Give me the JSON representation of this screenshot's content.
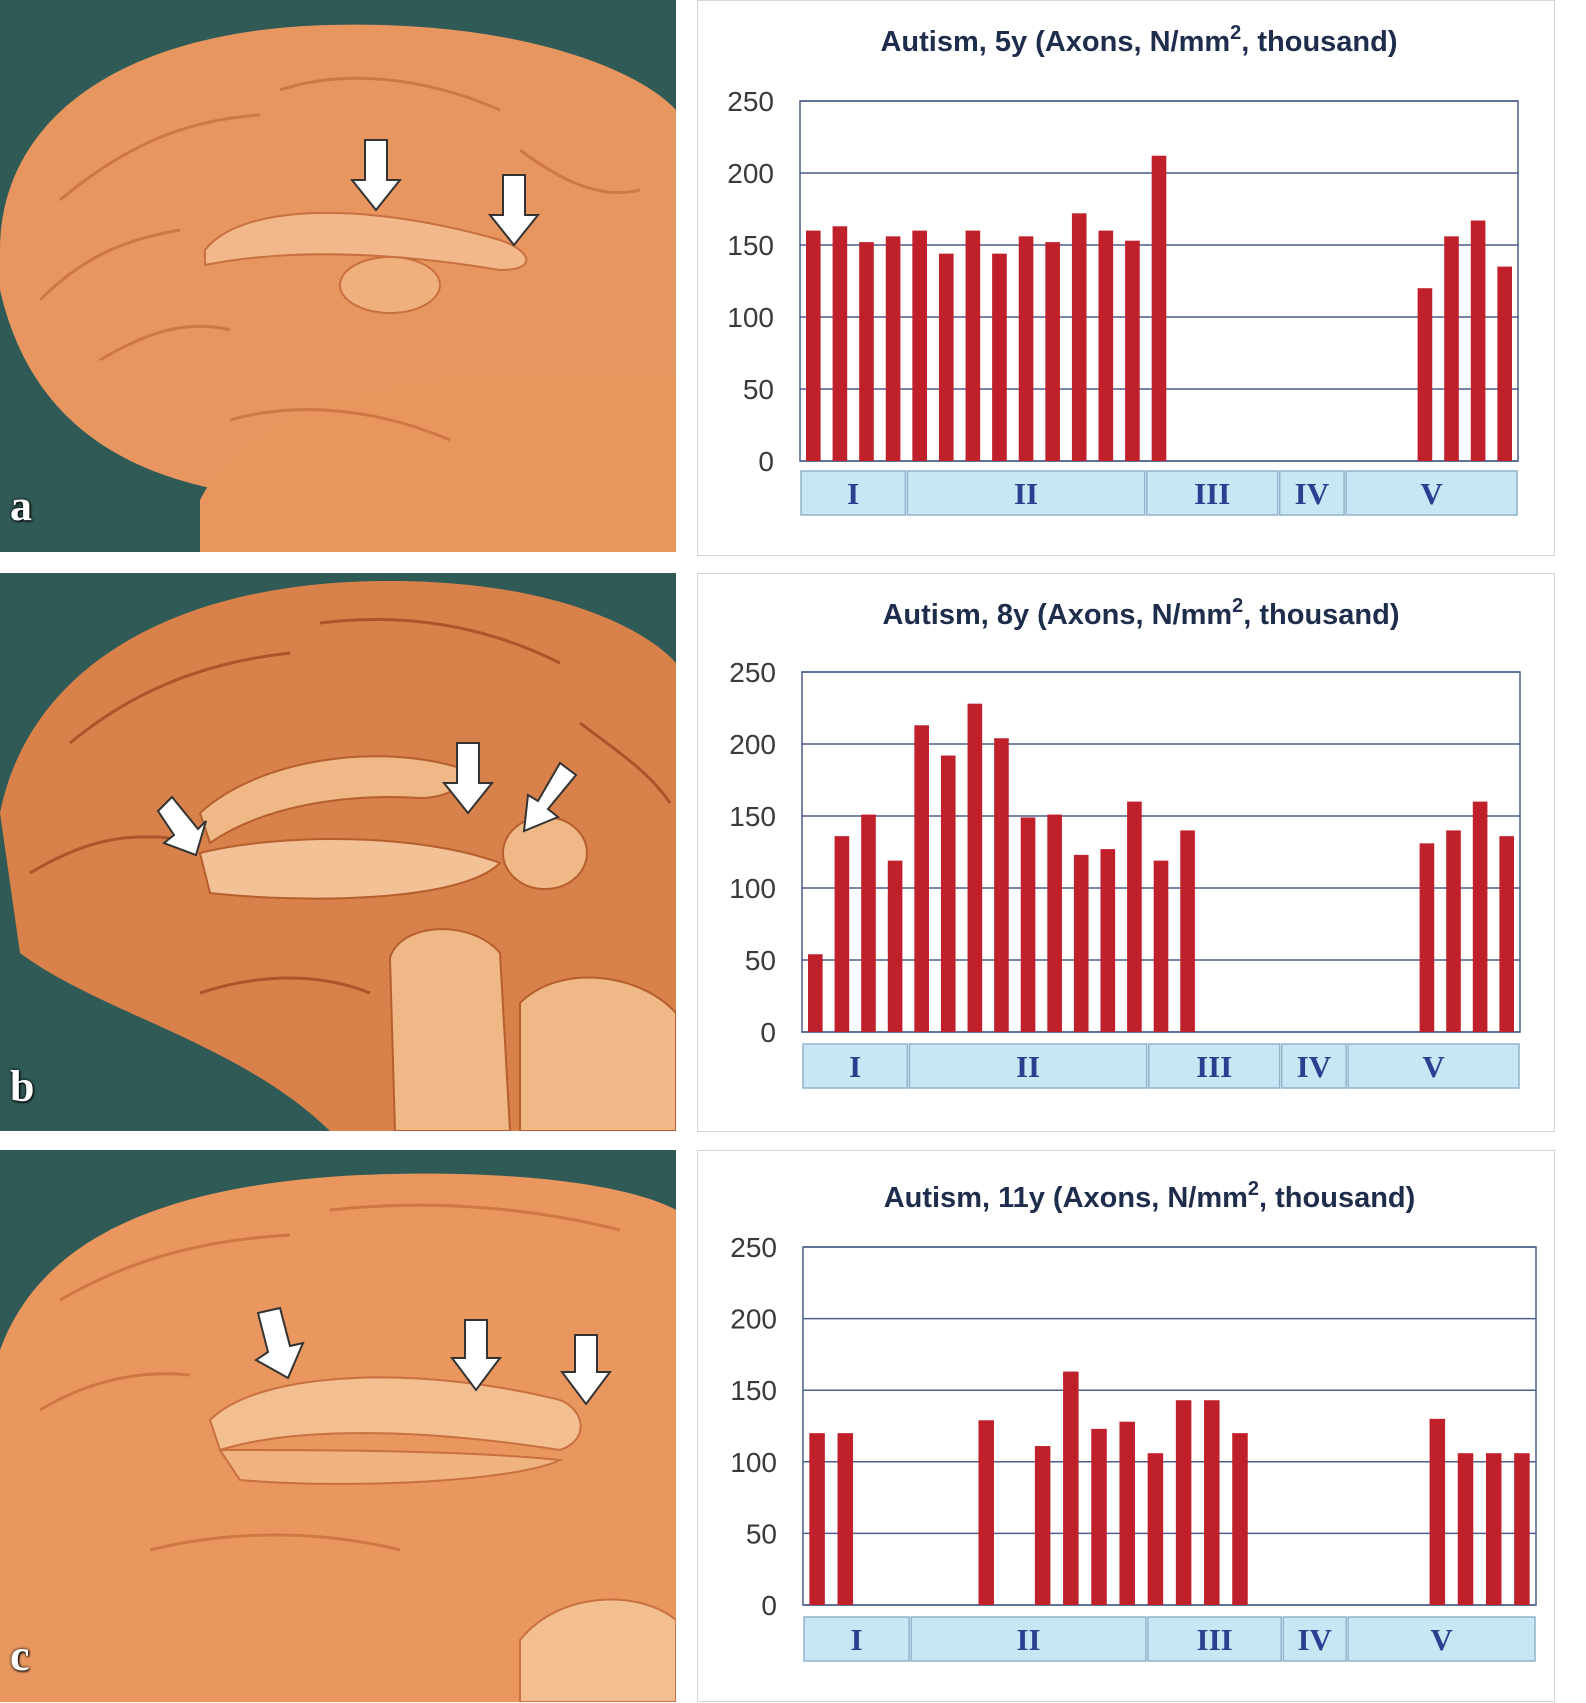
{
  "panels": [
    {
      "letter": "a",
      "photo_arrows": 2
    },
    {
      "letter": "b",
      "photo_arrows": 3
    },
    {
      "letter": "c",
      "photo_arrows": 3
    }
  ],
  "colors": {
    "bar": "#c0202a",
    "grid": "#4a5f8c",
    "region_fill": "#c8e6f4",
    "region_stroke": "#8fb4cc",
    "photo_bg": "#2f5a56",
    "brain": "#e8955e"
  },
  "chart_data": [
    {
      "type": "bar",
      "title": "Autism, 5y (Axons, N/mm",
      "title_sup": "2",
      "title_tail": ", thousand)",
      "ylim": [
        0,
        250
      ],
      "yticks": [
        0,
        50,
        100,
        150,
        200,
        250
      ],
      "grid": true,
      "slots": 27,
      "values": [
        160,
        163,
        152,
        156,
        160,
        144,
        160,
        144,
        156,
        152,
        172,
        160,
        153,
        212,
        null,
        null,
        null,
        null,
        null,
        null,
        null,
        null,
        null,
        120,
        156,
        167,
        135
      ],
      "regions": [
        {
          "label": "I",
          "start": 0,
          "end": 4
        },
        {
          "label": "II",
          "start": 4,
          "end": 13
        },
        {
          "label": "III",
          "start": 13,
          "end": 18
        },
        {
          "label": "IV",
          "start": 18,
          "end": 20.5
        },
        {
          "label": "V",
          "start": 20.5,
          "end": 27
        }
      ]
    },
    {
      "type": "bar",
      "title": "Autism, 8y (Axons, N/mm",
      "title_sup": "2",
      "title_tail": ", thousand)",
      "ylim": [
        0,
        250
      ],
      "yticks": [
        0,
        50,
        100,
        150,
        200,
        250
      ],
      "grid": true,
      "slots": 27,
      "values": [
        54,
        136,
        151,
        119,
        213,
        192,
        228,
        204,
        149,
        151,
        123,
        127,
        160,
        119,
        140,
        null,
        null,
        null,
        null,
        null,
        null,
        null,
        null,
        131,
        140,
        160,
        136
      ],
      "regions": [
        {
          "label": "I",
          "start": 0,
          "end": 4
        },
        {
          "label": "II",
          "start": 4,
          "end": 13
        },
        {
          "label": "III",
          "start": 13,
          "end": 18
        },
        {
          "label": "IV",
          "start": 18,
          "end": 20.5
        },
        {
          "label": "V",
          "start": 20.5,
          "end": 27
        }
      ]
    },
    {
      "type": "bar",
      "title": "Autism, 11y (Axons, N/mm",
      "title_sup": "2",
      "title_tail": ", thousand)",
      "ylim": [
        0,
        250
      ],
      "yticks": [
        0,
        50,
        100,
        150,
        200,
        250
      ],
      "grid": true,
      "slots": 26,
      "values": [
        120,
        120,
        null,
        null,
        null,
        null,
        129,
        null,
        111,
        163,
        123,
        128,
        106,
        143,
        143,
        120,
        null,
        null,
        null,
        null,
        null,
        null,
        130,
        106,
        106,
        106
      ],
      "regions": [
        {
          "label": "I",
          "start": 0,
          "end": 3.8
        },
        {
          "label": "II",
          "start": 3.8,
          "end": 12.2
        },
        {
          "label": "III",
          "start": 12.2,
          "end": 17
        },
        {
          "label": "IV",
          "start": 17,
          "end": 19.3
        },
        {
          "label": "V",
          "start": 19.3,
          "end": 26
        }
      ]
    }
  ]
}
